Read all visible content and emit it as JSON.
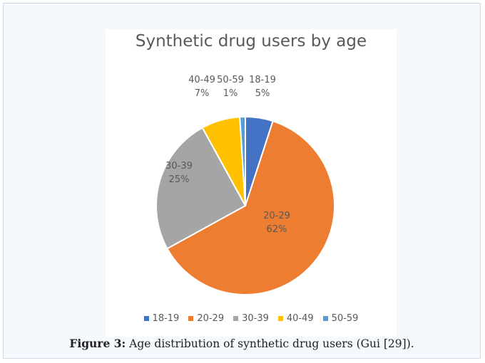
{
  "chart_data": {
    "type": "pie",
    "title": "Synthetic drug users by age",
    "categories": [
      "18-19",
      "20-29",
      "30-39",
      "40-49",
      "50-59"
    ],
    "values": [
      5,
      62,
      25,
      7,
      1
    ],
    "value_labels": [
      "5%",
      "62%",
      "25%",
      "7%",
      "1%"
    ],
    "colors": [
      "#4472c4",
      "#ed7d31",
      "#a5a5a5",
      "#ffc000",
      "#5b9bd5"
    ],
    "legend_position": "bottom",
    "start_angle": "top, clockwise"
  },
  "caption": {
    "label": "Figure 3:",
    "text": " Age distribution of synthetic drug users (Gui [29])."
  }
}
